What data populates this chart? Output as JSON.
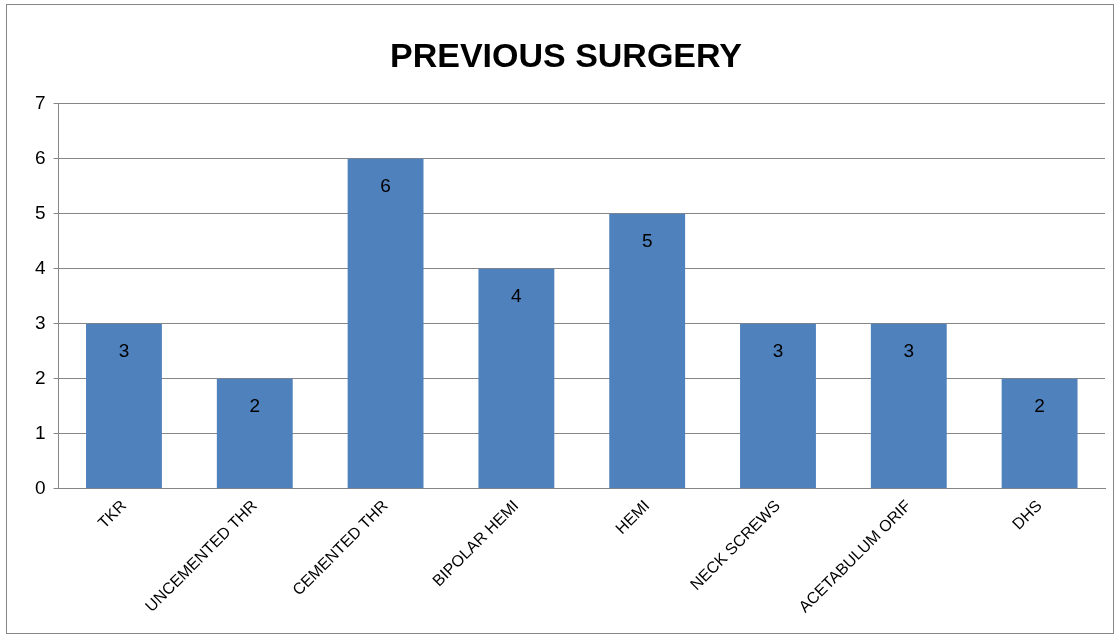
{
  "chart_data": {
    "type": "bar",
    "title": "PREVIOUS SURGERY",
    "categories": [
      "TKR",
      "UNCEMENTED THR",
      "CEMENTED THR",
      "BIPOLAR HEMI",
      "HEMI",
      "NECK SCREWS",
      "ACETABULUM ORIF",
      "DHS"
    ],
    "values": [
      3,
      2,
      6,
      4,
      5,
      3,
      3,
      2
    ],
    "color": "#4f81bd",
    "ylim": [
      0,
      7
    ],
    "yticks": [
      0,
      1,
      2,
      3,
      4,
      5,
      6,
      7
    ],
    "grid": "y",
    "data_labels": true,
    "legend": false
  }
}
